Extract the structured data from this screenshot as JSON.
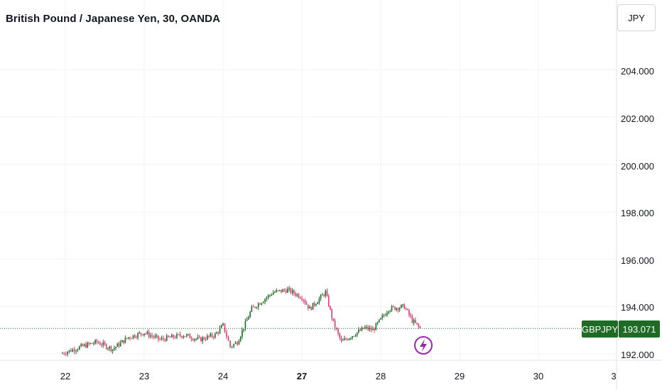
{
  "header": {
    "title": "British Pound / Japanese Yen, 30, OANDA",
    "currency_button": "JPY"
  },
  "price_label": {
    "symbol": "GBPJPY",
    "value": "193.071",
    "color": "#1e6b25"
  },
  "colors": {
    "up": "#1e6b25",
    "down": "#e03a6e",
    "grid": "#f0f3fa",
    "event_marker": "#9c27b0"
  },
  "icons": {
    "event_marker": "lightning-icon"
  },
  "chart_data": {
    "type": "candlestick",
    "symbol": "GBPJPY",
    "interval": "30",
    "source": "OANDA",
    "y_axis": {
      "ticks": [
        "192.000",
        "194.000",
        "196.000",
        "198.000",
        "200.000",
        "202.000",
        "204.000"
      ],
      "ylim": [
        191.95,
        206.0
      ]
    },
    "x_axis": {
      "ticks": [
        "22",
        "23",
        "24",
        "27",
        "28",
        "29",
        "30",
        "3"
      ],
      "bold_ticks": [
        "27"
      ]
    },
    "last_price": 193.071,
    "price_path": [
      {
        "x": "21.9",
        "y": 192.0
      },
      {
        "x": "22.2",
        "y": 192.3
      },
      {
        "x": "22.4",
        "y": 192.5
      },
      {
        "x": "22.6",
        "y": 192.2
      },
      {
        "x": "22.8",
        "y": 192.7
      },
      {
        "x": "23.0",
        "y": 192.9
      },
      {
        "x": "23.2",
        "y": 192.6
      },
      {
        "x": "23.5",
        "y": 192.8
      },
      {
        "x": "23.7",
        "y": 192.6
      },
      {
        "x": "23.9",
        "y": 192.8
      },
      {
        "x": "24.0",
        "y": 193.2
      },
      {
        "x": "24.1",
        "y": 192.3
      },
      {
        "x": "24.2",
        "y": 192.5
      },
      {
        "x": "24.4",
        "y": 193.9
      },
      {
        "x": "24.7",
        "y": 194.6
      },
      {
        "x": "24.9",
        "y": 194.7
      },
      {
        "x": "27.0",
        "y": 194.4
      },
      {
        "x": "27.1",
        "y": 193.9
      },
      {
        "x": "27.3",
        "y": 194.6
      },
      {
        "x": "27.4",
        "y": 193.3
      },
      {
        "x": "27.5",
        "y": 192.5
      },
      {
        "x": "27.7",
        "y": 192.9
      },
      {
        "x": "27.8",
        "y": 193.1
      },
      {
        "x": "27.9",
        "y": 193.0
      },
      {
        "x": "28.1",
        "y": 193.9
      },
      {
        "x": "28.3",
        "y": 194.0
      },
      {
        "x": "28.4",
        "y": 193.4
      },
      {
        "x": "28.5",
        "y": 193.071
      }
    ]
  }
}
